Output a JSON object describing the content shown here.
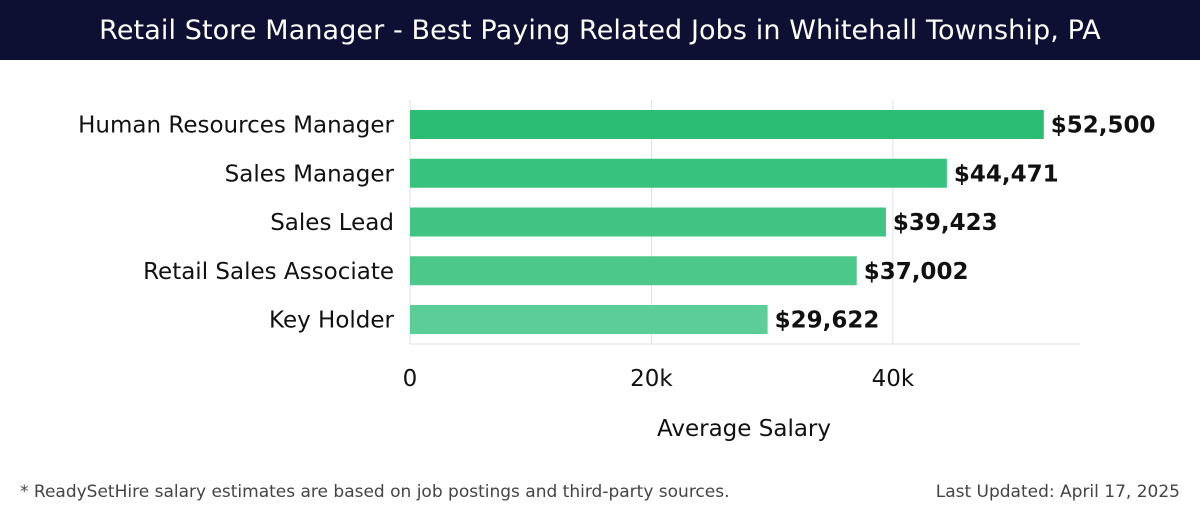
{
  "header": {
    "title": "Retail Store Manager - Best Paying Related Jobs in Whitehall Township, PA"
  },
  "chart_data": {
    "type": "bar",
    "orientation": "horizontal",
    "categories": [
      "Human Resources Manager",
      "Sales Manager",
      "Sales Lead",
      "Retail Sales Associate",
      "Key Holder"
    ],
    "values": [
      52500,
      44471,
      39423,
      37002,
      29622
    ],
    "value_labels": [
      "$52,500",
      "$44,471",
      "$39,423",
      "$37,002",
      "$29,622"
    ],
    "bar_colors": [
      "#2bbd73",
      "#37c27d",
      "#41c483",
      "#4cc88b",
      "#5ccd96"
    ],
    "xlabel": "Average Salary",
    "ylabel": "",
    "xlim": [
      0,
      55500
    ],
    "xticks": [
      0,
      20000,
      40000
    ],
    "xtick_labels": [
      "0",
      "20k",
      "40k"
    ],
    "grid": true
  },
  "footer": {
    "note": "* ReadySetHire salary estimates are based on job postings and third-party sources.",
    "updated": "Last Updated: April 17, 2025"
  },
  "colors": {
    "title_bg": "#0d1033",
    "grid": "#e0e0e0"
  }
}
